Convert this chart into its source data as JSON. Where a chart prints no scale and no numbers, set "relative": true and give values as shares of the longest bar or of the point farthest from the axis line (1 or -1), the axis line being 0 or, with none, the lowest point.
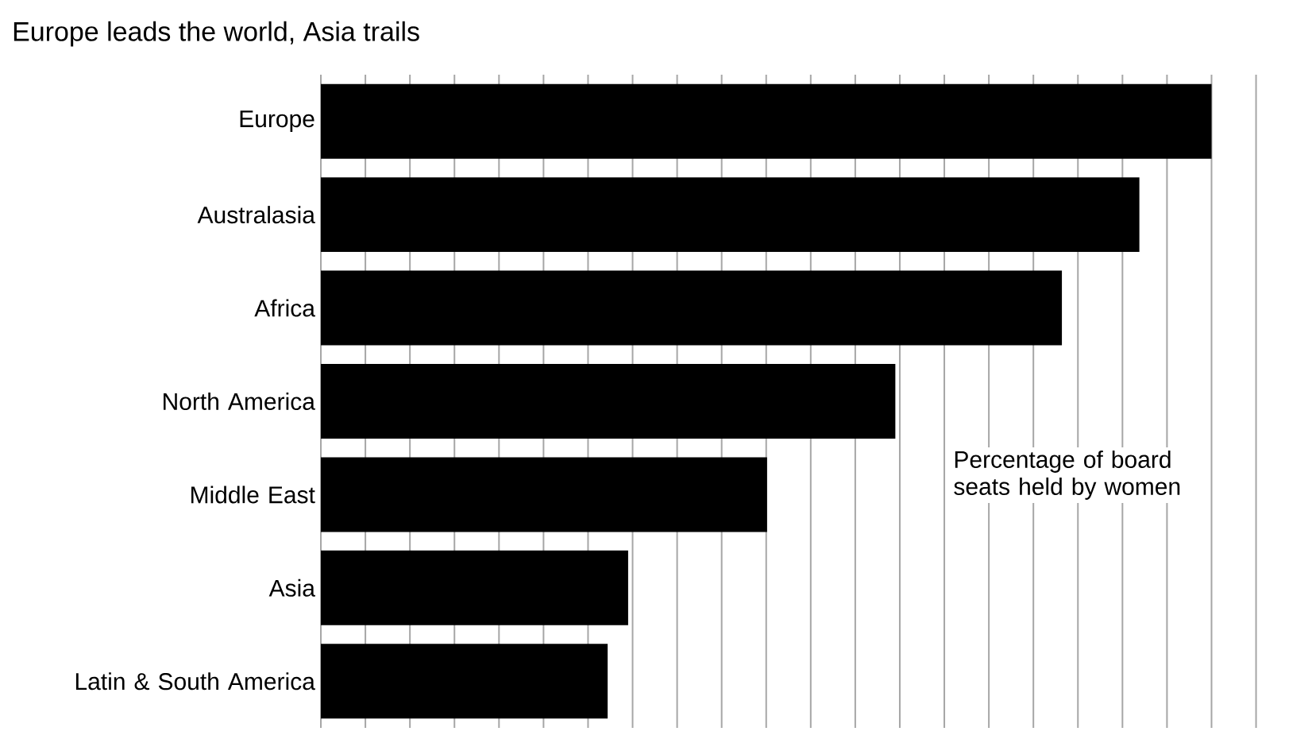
{
  "chart_data": {
    "type": "bar",
    "orientation": "horizontal",
    "relative": true,
    "title": "Europe leads the world, Asia trails",
    "categories": [
      "Europe",
      "Australasia",
      "Africa",
      "North America",
      "Middle East",
      "Asia",
      "Latin & South America"
    ],
    "values": [
      1,
      0.919,
      0.832,
      0.645,
      0.501,
      0.345,
      0.322
    ],
    "color": "#000000",
    "grid": "x",
    "annotations": [
      "Percentage of board seats held by women"
    ]
  }
}
